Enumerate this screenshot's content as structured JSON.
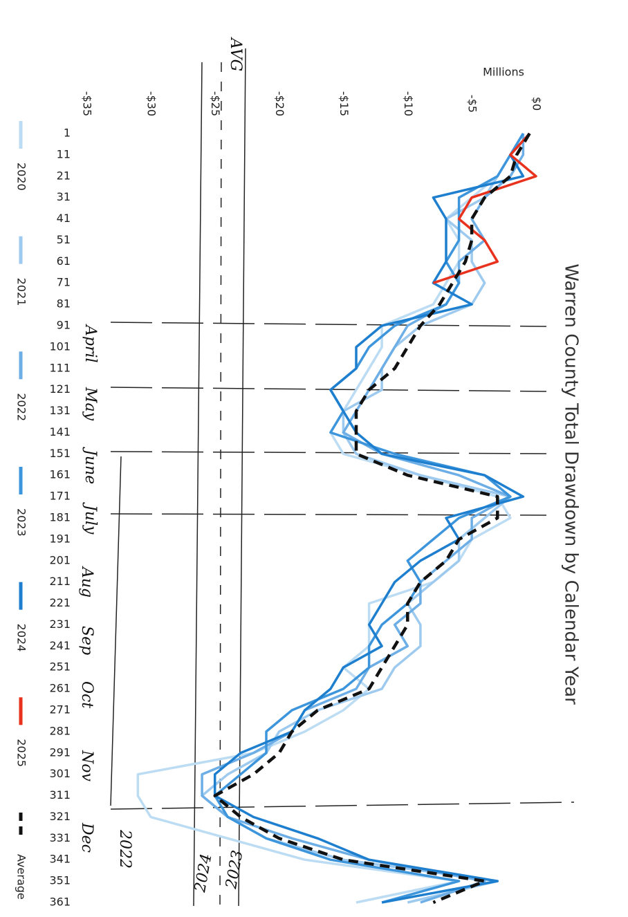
{
  "chart_data": {
    "type": "line",
    "title": "Warren County Total Drawdown by Calendar Year",
    "y_axis_label": "Millions",
    "x": [
      1,
      11,
      21,
      31,
      41,
      51,
      61,
      71,
      81,
      91,
      101,
      111,
      121,
      131,
      141,
      151,
      161,
      171,
      181,
      191,
      201,
      211,
      221,
      231,
      241,
      251,
      261,
      271,
      281,
      291,
      301,
      311,
      321,
      331,
      341,
      351,
      361
    ],
    "xlim": [
      1,
      361
    ],
    "xticks": [
      1,
      11,
      21,
      31,
      41,
      51,
      61,
      71,
      81,
      91,
      101,
      111,
      121,
      131,
      141,
      151,
      161,
      171,
      181,
      191,
      201,
      211,
      221,
      231,
      241,
      251,
      261,
      271,
      281,
      291,
      301,
      311,
      321,
      331,
      341,
      351,
      361
    ],
    "ylim": [
      -35,
      0
    ],
    "yticks": [
      {
        "value": -35,
        "label": "-$35"
      },
      {
        "value": -30,
        "label": "-$30"
      },
      {
        "value": -25,
        "label": "-$25"
      },
      {
        "value": -20,
        "label": "-$20"
      },
      {
        "value": -15,
        "label": "-$15"
      },
      {
        "value": -10,
        "label": "-$10"
      },
      {
        "value": -5,
        "label": "-$5"
      },
      {
        "value": 0,
        "label": "$0"
      }
    ],
    "grid": false,
    "legend": "left",
    "series": [
      {
        "name": "2020",
        "color": "#bcdcf3",
        "values": [
          -1,
          -2,
          -3,
          -5,
          -7,
          -6,
          -6,
          -7,
          -8,
          -12,
          -12,
          -13,
          -14,
          -15,
          -16,
          -15,
          -9,
          -3,
          -2,
          -5,
          -6,
          -8,
          -13,
          -13,
          -13,
          -15,
          -13,
          -15,
          -18,
          -22,
          -31,
          -31,
          -30,
          -24,
          -18,
          -6,
          -14
        ]
      },
      {
        "name": "2021",
        "color": "#9dcaee",
        "values": [
          -1,
          -2,
          -3,
          -4,
          -7,
          -5,
          -5,
          -4,
          -5,
          -9,
          -11,
          -12,
          -12,
          -15,
          -15,
          -14,
          -9,
          -2,
          -4,
          -6,
          -6,
          -8,
          -10,
          -9,
          -9,
          -11,
          -12,
          -17,
          -20,
          -21,
          -24,
          -26,
          -24,
          -21,
          -15,
          -3,
          -10
        ]
      },
      {
        "name": "2022",
        "color": "#6caee5",
        "values": [
          -1,
          -1,
          -2,
          -4,
          -5,
          -4,
          -6,
          -6,
          -7,
          -10,
          -11,
          -12,
          -13,
          -14,
          -15,
          -12,
          -6,
          -2,
          -5,
          -5,
          -7,
          -9,
          -9,
          -11,
          -10,
          -13,
          -14,
          -18,
          -19,
          -22,
          -26,
          -26,
          -24,
          -19,
          -13,
          -4,
          -9
        ]
      },
      {
        "name": "2023",
        "color": "#3d95dc",
        "values": [
          -1,
          -2,
          -3,
          -6,
          -6,
          -6,
          -7,
          -6,
          -7,
          -11,
          -13,
          -14,
          -16,
          -15,
          -16,
          -11,
          -4,
          -2,
          -6,
          -8,
          -10,
          -9,
          -10,
          -12,
          -13,
          -13,
          -15,
          -19,
          -21,
          -21,
          -23,
          -25,
          -24,
          -21,
          -16,
          -6,
          -12
        ]
      },
      {
        "name": "2024",
        "color": "#1f7fcf",
        "values": [
          -0.5,
          -2,
          -1,
          -8,
          -7,
          -7,
          -7,
          -8,
          -5,
          -12,
          -14,
          -14,
          -16,
          -15,
          -14,
          -12,
          -4,
          -1,
          -7,
          -6,
          -9,
          -11,
          -12,
          -13,
          -12,
          -15,
          -16,
          -18,
          -19,
          -23,
          -25,
          -25,
          -22,
          -17,
          -13,
          -3,
          -12
        ]
      },
      {
        "name": "2025",
        "color": "#e8321e",
        "values": [
          -0.5,
          -2,
          0,
          -5,
          -6,
          -4,
          -3,
          -8,
          null,
          null,
          null,
          null,
          null,
          null,
          null,
          null,
          null,
          null,
          null,
          null,
          null,
          null,
          null,
          null,
          null,
          null,
          null,
          null,
          null,
          null,
          null,
          null,
          null,
          null,
          null,
          null,
          null
        ]
      },
      {
        "name": "Average",
        "color": "#111111",
        "dashed": true,
        "values": [
          -0.5,
          -1.5,
          -2,
          -4,
          -5,
          -5,
          -5.5,
          -6.5,
          -7.5,
          -9,
          -10,
          -11,
          -13,
          -14,
          -14,
          -14,
          -10,
          -3,
          -3,
          -6,
          -7,
          -9,
          -10,
          -10,
          -11,
          -12,
          -13,
          -17,
          -19,
          -20,
          -22,
          -25,
          -23,
          -20,
          -15,
          -4,
          -8
        ]
      }
    ],
    "annotations": [
      "AVG",
      "April",
      "May",
      "June",
      "July",
      "Aug",
      "Sep",
      "Oct",
      "Nov",
      "Dec",
      "2022",
      "2023",
      "2024"
    ]
  }
}
